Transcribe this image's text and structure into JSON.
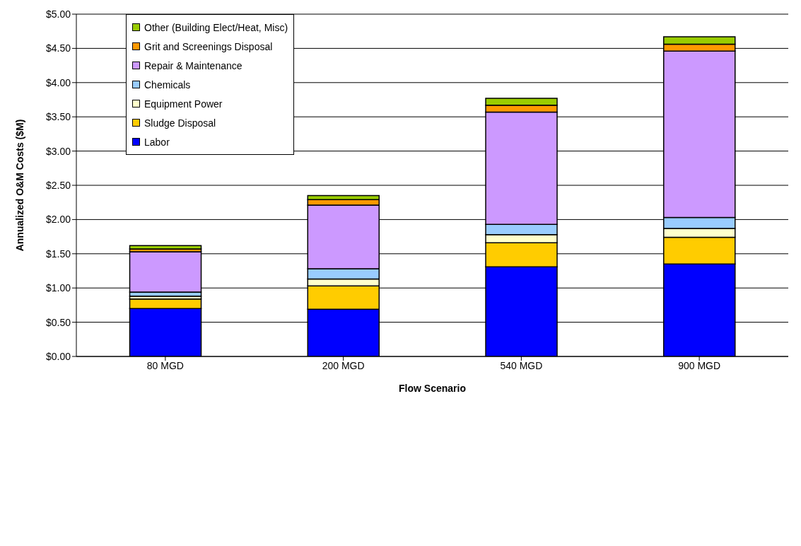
{
  "chart_data": {
    "type": "bar",
    "stacked": true,
    "xlabel": "Flow Scenario",
    "ylabel": "Annualized O&M Costs ($M)",
    "categories": [
      "80 MGD",
      "200 MGD",
      "540 MGD",
      "900 MGD"
    ],
    "series": [
      {
        "name": "Labor",
        "color": "#0000ff",
        "values": [
          0.7,
          0.69,
          1.31,
          1.35
        ]
      },
      {
        "name": "Sludge Disposal",
        "color": "#ffcc00",
        "values": [
          0.14,
          0.34,
          0.35,
          0.39
        ]
      },
      {
        "name": "Equipment Power",
        "color": "#ffffcc",
        "values": [
          0.04,
          0.1,
          0.12,
          0.13
        ]
      },
      {
        "name": "Chemicals",
        "color": "#99ccff",
        "values": [
          0.06,
          0.15,
          0.15,
          0.16
        ]
      },
      {
        "name": "Repair & Maintenance",
        "color": "#cc99ff",
        "values": [
          0.59,
          0.93,
          1.64,
          2.43
        ]
      },
      {
        "name": "Grit and Screenings Disposal",
        "color": "#ff9900",
        "values": [
          0.04,
          0.08,
          0.1,
          0.1
        ]
      },
      {
        "name": "Other (Building Elect/Heat, Misc)",
        "color": "#99cc00",
        "values": [
          0.05,
          0.06,
          0.1,
          0.11
        ]
      }
    ],
    "ylim": [
      0,
      5
    ],
    "yticks": [
      {
        "value": 0,
        "label": "$0.00"
      },
      {
        "value": 0.5,
        "label": "$0.50"
      },
      {
        "value": 1,
        "label": "$1.00"
      },
      {
        "value": 1.5,
        "label": "$1.50"
      },
      {
        "value": 2,
        "label": "$2.00"
      },
      {
        "value": 2.5,
        "label": "$2.50"
      },
      {
        "value": 3,
        "label": "$3.00"
      },
      {
        "value": 3.5,
        "label": "$3.50"
      },
      {
        "value": 4,
        "label": "$4.00"
      },
      {
        "value": 4.5,
        "label": "$4.50"
      },
      {
        "value": 5,
        "label": "$5.00"
      }
    ],
    "grid": "y",
    "legend": "top left"
  }
}
